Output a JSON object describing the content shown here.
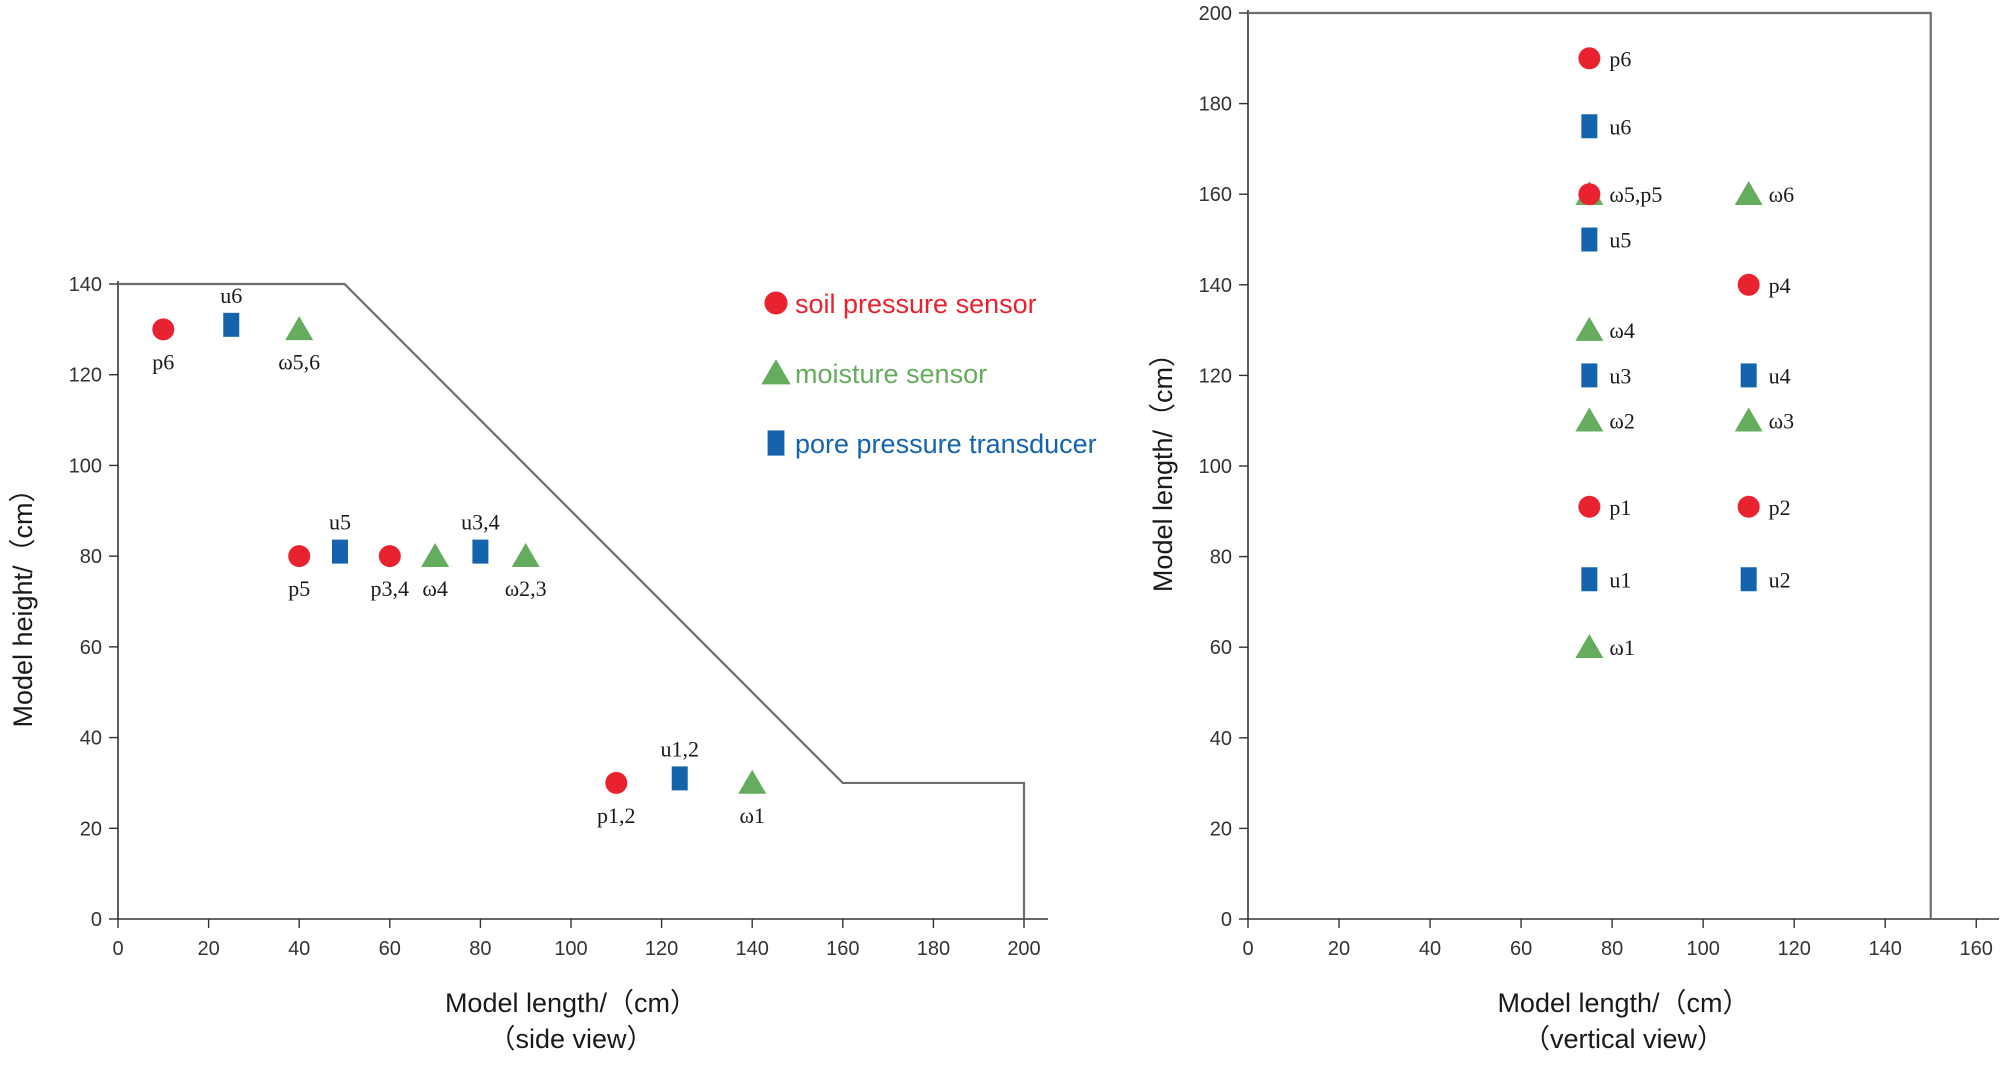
{
  "colors": {
    "soil_pressure": "#e8222e",
    "moisture": "#66ac5e",
    "pore_pressure": "#1464ad",
    "axis": "#333333",
    "profile": "#6e6e6e"
  },
  "legend": [
    {
      "type": "soil_pressure",
      "label": "soil pressure sensor",
      "color": "#e8222e"
    },
    {
      "type": "moisture",
      "label": "moisture sensor",
      "color": "#66ac5e"
    },
    {
      "type": "pore_pressure",
      "label": "pore pressure transducer",
      "color": "#1464ad"
    }
  ],
  "chart_data": [
    {
      "type": "scatter",
      "xlabel": "Model length/（cm）",
      "xlabel2": "（side view）",
      "ylabel": "Model height/（cm）",
      "xlim": [
        0,
        200
      ],
      "ylim": [
        0,
        140
      ],
      "xticks": [
        0,
        20,
        40,
        60,
        80,
        100,
        120,
        140,
        160,
        180,
        200
      ],
      "yticks": [
        0,
        20,
        40,
        60,
        80,
        100,
        120,
        140
      ],
      "profile": [
        [
          0,
          140
        ],
        [
          50,
          140
        ],
        [
          160,
          30
        ],
        [
          200,
          30
        ],
        [
          200,
          0
        ]
      ],
      "points": [
        {
          "sensor": "soil_pressure",
          "x": 10,
          "y": 130,
          "label": "p6",
          "label_pos": "below"
        },
        {
          "sensor": "pore_pressure",
          "x": 25,
          "y": 131,
          "label": "u6",
          "label_pos": "above"
        },
        {
          "sensor": "moisture",
          "x": 40,
          "y": 130,
          "label": "ω5,6",
          "label_pos": "below"
        },
        {
          "sensor": "soil_pressure",
          "x": 40,
          "y": 80,
          "label": "p5",
          "label_pos": "below"
        },
        {
          "sensor": "pore_pressure",
          "x": 49,
          "y": 81,
          "label": "u5",
          "label_pos": "above"
        },
        {
          "sensor": "soil_pressure",
          "x": 60,
          "y": 80,
          "label": "p3,4",
          "label_pos": "below"
        },
        {
          "sensor": "moisture",
          "x": 70,
          "y": 80,
          "label": "ω4",
          "label_pos": "below"
        },
        {
          "sensor": "pore_pressure",
          "x": 80,
          "y": 81,
          "label": "u3,4",
          "label_pos": "above"
        },
        {
          "sensor": "moisture",
          "x": 90,
          "y": 80,
          "label": "ω2,3",
          "label_pos": "below"
        },
        {
          "sensor": "soil_pressure",
          "x": 110,
          "y": 30,
          "label": "p1,2",
          "label_pos": "below"
        },
        {
          "sensor": "pore_pressure",
          "x": 124,
          "y": 31,
          "label": "u1,2",
          "label_pos": "above"
        },
        {
          "sensor": "moisture",
          "x": 140,
          "y": 30,
          "label": "ω1",
          "label_pos": "below"
        }
      ]
    },
    {
      "type": "scatter",
      "xlabel": "Model length/（cm）",
      "xlabel2": "（vertical view）",
      "ylabel": "Model length/（cm）",
      "xlim": [
        0,
        165
      ],
      "ylim": [
        0,
        200
      ],
      "xticks": [
        0,
        20,
        40,
        60,
        80,
        100,
        120,
        140,
        160
      ],
      "yticks": [
        0,
        20,
        40,
        60,
        80,
        100,
        120,
        140,
        160,
        180,
        200
      ],
      "boundary": [
        [
          0,
          200
        ],
        [
          150,
          200
        ],
        [
          150,
          0
        ]
      ],
      "points": [
        {
          "sensor": "soil_pressure",
          "x": 75,
          "y": 190,
          "label": "p6",
          "label_pos": "right"
        },
        {
          "sensor": "pore_pressure",
          "x": 75,
          "y": 175,
          "label": "u6",
          "label_pos": "right"
        },
        {
          "sensor": "moisture",
          "x": 75,
          "y": 160,
          "label": "",
          "label_pos": "right"
        },
        {
          "sensor": "soil_pressure",
          "x": 75,
          "y": 160,
          "label": "ω5,p5",
          "label_pos": "right"
        },
        {
          "sensor": "moisture",
          "x": 110,
          "y": 160,
          "label": "ω6",
          "label_pos": "right"
        },
        {
          "sensor": "pore_pressure",
          "x": 75,
          "y": 150,
          "label": "u5",
          "label_pos": "right"
        },
        {
          "sensor": "soil_pressure",
          "x": 110,
          "y": 140,
          "label": "p4",
          "label_pos": "right"
        },
        {
          "sensor": "moisture",
          "x": 75,
          "y": 130,
          "label": "ω4",
          "label_pos": "right"
        },
        {
          "sensor": "pore_pressure",
          "x": 75,
          "y": 120,
          "label": "u3",
          "label_pos": "right"
        },
        {
          "sensor": "pore_pressure",
          "x": 110,
          "y": 120,
          "label": "u4",
          "label_pos": "right"
        },
        {
          "sensor": "moisture",
          "x": 75,
          "y": 110,
          "label": "ω2",
          "label_pos": "right"
        },
        {
          "sensor": "moisture",
          "x": 110,
          "y": 110,
          "label": "ω3",
          "label_pos": "right"
        },
        {
          "sensor": "soil_pressure",
          "x": 75,
          "y": 91,
          "label": "p1",
          "label_pos": "right"
        },
        {
          "sensor": "soil_pressure",
          "x": 110,
          "y": 91,
          "label": "p2",
          "label_pos": "right"
        },
        {
          "sensor": "pore_pressure",
          "x": 75,
          "y": 75,
          "label": "u1",
          "label_pos": "right"
        },
        {
          "sensor": "pore_pressure",
          "x": 110,
          "y": 75,
          "label": "u2",
          "label_pos": "right"
        },
        {
          "sensor": "moisture",
          "x": 75,
          "y": 60,
          "label": "ω1",
          "label_pos": "right"
        }
      ]
    }
  ]
}
